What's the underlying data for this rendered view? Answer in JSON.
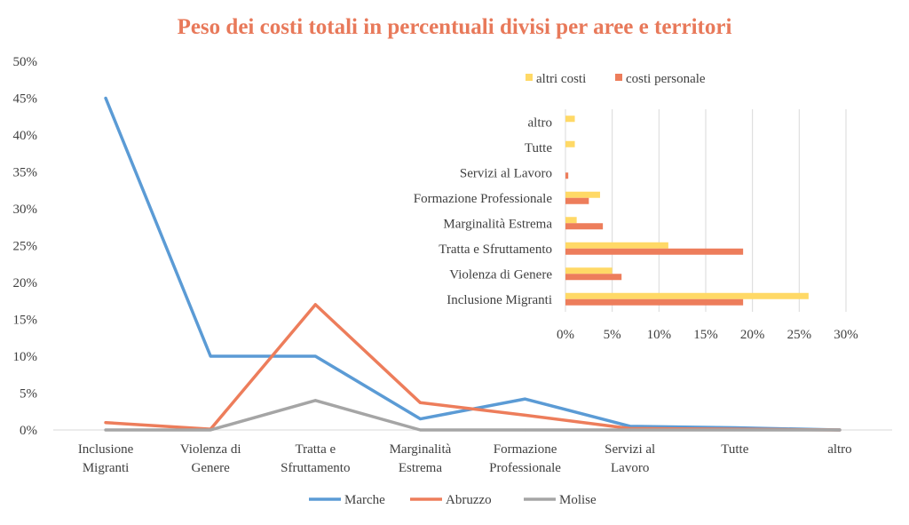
{
  "chart_data": [
    {
      "type": "line",
      "title": "Peso dei costi totali in percentuali divisi per aree e territori",
      "title_color": "#e8795a",
      "categories": [
        [
          "Inclusione",
          "Migranti"
        ],
        [
          "Violenza di",
          "Genere"
        ],
        [
          "Tratta e",
          "Sfruttamento"
        ],
        [
          "Marginalità",
          "Estrema"
        ],
        [
          "Formazione",
          "Professionale"
        ],
        [
          "Servizi al",
          "Lavoro"
        ],
        [
          "Tutte"
        ],
        [
          "altro"
        ]
      ],
      "yticks": [
        "0%",
        "5%",
        "10%",
        "15%",
        "20%",
        "25%",
        "30%",
        "35%",
        "40%",
        "45%",
        "50%"
      ],
      "ylim": [
        0,
        50
      ],
      "xlabel": "",
      "ylabel": "",
      "legend_position": "bottom",
      "series": [
        {
          "name": "Marche",
          "color": "#5b9bd5",
          "values": [
            45,
            10,
            10,
            1.5,
            4.2,
            0.5,
            0.3,
            0
          ]
        },
        {
          "name": "Abruzzo",
          "color": "#ed7d5b",
          "values": [
            1,
            0.1,
            17,
            3.7,
            2,
            0.2,
            0.1,
            0
          ]
        },
        {
          "name": "Molise",
          "color": "#a5a5a5",
          "values": [
            0,
            0,
            4,
            0,
            0,
            0,
            0,
            0
          ]
        }
      ]
    },
    {
      "type": "bar",
      "orientation": "horizontal",
      "categories": [
        "altro",
        "Tutte",
        "Servizi al Lavoro",
        "Formazione Professionale",
        "Marginalità Estrema",
        "Tratta e Sfruttamento",
        "Violenza di Genere",
        "Inclusione Migranti"
      ],
      "xticks": [
        "0%",
        "5%",
        "10%",
        "15%",
        "20%",
        "25%",
        "30%"
      ],
      "xlim": [
        0,
        30
      ],
      "grid": true,
      "legend_position": "top",
      "series": [
        {
          "name": "altri costi",
          "color": "#ffd966",
          "values": [
            1,
            1,
            0,
            3.7,
            1.2,
            11,
            5,
            26
          ]
        },
        {
          "name": "costi personale",
          "color": "#ed7d5b",
          "values": [
            0,
            0,
            0.3,
            2.5,
            4,
            19,
            6,
            19
          ]
        }
      ]
    }
  ]
}
